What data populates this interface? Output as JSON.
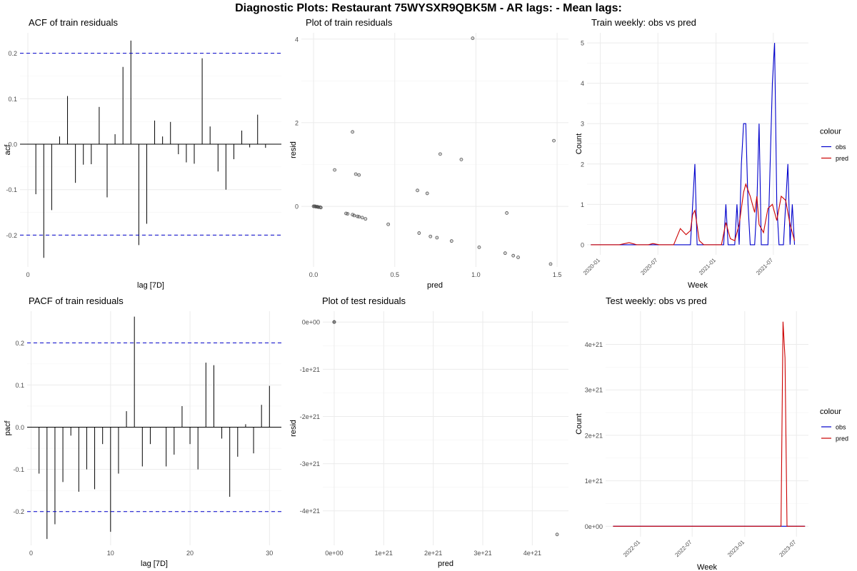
{
  "title": "Diagnostic Plots: Restaurant 75WYSXR9QBK5M - AR lags:  - Mean lags:",
  "colors": {
    "grid": "#ebebeb",
    "line": "#000000",
    "ci": "#0000cc",
    "obs": "#0000cc",
    "pred": "#cc0000",
    "point": "#555555"
  },
  "chart_data": [
    {
      "id": "acf",
      "type": "bar",
      "title": "ACF of train residuals",
      "xlabel": "lag [7D]",
      "ylabel": "acf",
      "xlim": [
        -1,
        32
      ],
      "ylim": [
        -0.27,
        0.245
      ],
      "xticks": [
        0
      ],
      "yticks": [
        -0.2,
        -0.1,
        0.0,
        0.1,
        0.2
      ],
      "yticklabels": [
        "-0.2",
        "-0.1",
        "0.0",
        "0.1",
        "0.2"
      ],
      "ci": [
        0.2,
        -0.2
      ],
      "lags": [
        1,
        2,
        3,
        4,
        5,
        6,
        7,
        8,
        9,
        10,
        11,
        12,
        13,
        14,
        15,
        16,
        17,
        18,
        19,
        20,
        21,
        22,
        23,
        24,
        25,
        26,
        27,
        28,
        29,
        30,
        31
      ],
      "values": [
        -0.11,
        -0.25,
        -0.145,
        0.017,
        0.106,
        -0.085,
        -0.045,
        -0.044,
        0.082,
        -0.117,
        0.022,
        0.17,
        0.228,
        -0.222,
        -0.175,
        0.052,
        0.017,
        0.049,
        -0.022,
        -0.04,
        -0.043,
        0.189,
        0.039,
        -0.06,
        -0.1,
        -0.033,
        0.03,
        -0.007,
        0.065,
        -0.008,
        0.0
      ]
    },
    {
      "id": "train-resid",
      "type": "scatter",
      "title": "Plot of train residuals",
      "xlabel": "pred",
      "ylabel": "resid",
      "xlim": [
        -0.075,
        1.57
      ],
      "ylim": [
        -1.45,
        4.15
      ],
      "xticks": [
        0.0,
        0.5,
        1.0,
        1.5
      ],
      "xticklabels": [
        "0.0",
        "0.5",
        "1.0",
        "1.5"
      ],
      "yticks": [
        0,
        2,
        4
      ],
      "yticklabels": [
        "0",
        "2",
        "4"
      ],
      "x": [
        0.0,
        0.005,
        0.01,
        0.015,
        0.02,
        0.025,
        0.03,
        0.04,
        0.045,
        0.2,
        0.21,
        0.24,
        0.25,
        0.27,
        0.28,
        0.3,
        0.32,
        0.13,
        0.24,
        0.26,
        0.28,
        0.46,
        0.64,
        0.65,
        0.7,
        0.72,
        0.76,
        0.78,
        0.85,
        0.91,
        0.98,
        1.02,
        1.18,
        1.19,
        1.23,
        1.26,
        1.46,
        1.48
      ],
      "y": [
        0.0,
        0.0,
        0.0,
        -0.01,
        -0.01,
        -0.01,
        -0.02,
        -0.02,
        -0.03,
        -0.17,
        -0.18,
        -0.2,
        -0.22,
        -0.24,
        -0.25,
        -0.27,
        -0.3,
        0.87,
        1.78,
        0.77,
        0.75,
        -0.43,
        0.38,
        -0.64,
        0.31,
        -0.72,
        -0.75,
        1.25,
        -0.83,
        1.12,
        4.02,
        -0.98,
        -1.12,
        -0.16,
        -1.18,
        -1.22,
        -1.38,
        1.57
      ]
    },
    {
      "id": "train-weekly",
      "type": "line",
      "title": "Train weekly: obs vs pred",
      "xlabel": "Week",
      "ylabel": "Count",
      "xlim": [
        "2019-11-20",
        "2021-10-20"
      ],
      "ylim": [
        -0.25,
        5.25
      ],
      "xticks": [
        "2020-01",
        "2020-07",
        "2021-01",
        "2021-07"
      ],
      "yticks": [
        0,
        1,
        2,
        3,
        4,
        5
      ],
      "yticklabels": [
        "0",
        "1",
        "2",
        "3",
        "4",
        "5"
      ],
      "legend_title": "colour",
      "legend_placement": "right",
      "series": [
        {
          "name": "obs",
          "points": [
            [
              "2019-12-02",
              0
            ],
            [
              "2020-10-12",
              0
            ],
            [
              "2020-10-19",
              1
            ],
            [
              "2020-10-26",
              2
            ],
            [
              "2020-11-02",
              0
            ],
            [
              "2021-01-25",
              0
            ],
            [
              "2021-02-01",
              1
            ],
            [
              "2021-02-08",
              0
            ],
            [
              "2021-03-01",
              0
            ],
            [
              "2021-03-08",
              1
            ],
            [
              "2021-03-15",
              0
            ],
            [
              "2021-03-22",
              2
            ],
            [
              "2021-03-29",
              3
            ],
            [
              "2021-04-05",
              3
            ],
            [
              "2021-04-12",
              1
            ],
            [
              "2021-04-19",
              0
            ],
            [
              "2021-05-03",
              0
            ],
            [
              "2021-05-10",
              1
            ],
            [
              "2021-05-17",
              3
            ],
            [
              "2021-05-24",
              0
            ],
            [
              "2021-06-14",
              0
            ],
            [
              "2021-06-21",
              2
            ],
            [
              "2021-06-28",
              4
            ],
            [
              "2021-07-05",
              5
            ],
            [
              "2021-07-12",
              1
            ],
            [
              "2021-07-19",
              0
            ],
            [
              "2021-08-02",
              0
            ],
            [
              "2021-08-09",
              1
            ],
            [
              "2021-08-16",
              2
            ],
            [
              "2021-08-23",
              0
            ],
            [
              "2021-08-30",
              1
            ],
            [
              "2021-09-06",
              0
            ]
          ]
        },
        {
          "name": "pred",
          "points": [
            [
              "2019-12-02",
              0
            ],
            [
              "2020-03-01",
              0
            ],
            [
              "2020-04-01",
              0.05
            ],
            [
              "2020-04-25",
              0
            ],
            [
              "2020-06-01",
              0
            ],
            [
              "2020-06-15",
              0.03
            ],
            [
              "2020-07-05",
              0
            ],
            [
              "2020-08-20",
              0
            ],
            [
              "2020-09-10",
              0.4
            ],
            [
              "2020-09-28",
              0.25
            ],
            [
              "2020-10-12",
              0.35
            ],
            [
              "2020-10-19",
              0.75
            ],
            [
              "2020-10-26",
              0.85
            ],
            [
              "2020-11-09",
              0.1
            ],
            [
              "2020-11-23",
              0
            ],
            [
              "2021-01-18",
              0
            ],
            [
              "2021-02-01",
              0.55
            ],
            [
              "2021-02-15",
              0.15
            ],
            [
              "2021-03-01",
              0.1
            ],
            [
              "2021-03-15",
              0.5
            ],
            [
              "2021-03-29",
              1.3
            ],
            [
              "2021-04-05",
              1.5
            ],
            [
              "2021-04-19",
              1.2
            ],
            [
              "2021-05-03",
              0.8
            ],
            [
              "2021-05-10",
              1.2
            ],
            [
              "2021-05-17",
              0.5
            ],
            [
              "2021-05-31",
              0.3
            ],
            [
              "2021-06-14",
              0.9
            ],
            [
              "2021-06-28",
              1.0
            ],
            [
              "2021-07-12",
              0.6
            ],
            [
              "2021-07-26",
              1.2
            ],
            [
              "2021-08-09",
              1.1
            ],
            [
              "2021-08-23",
              0.5
            ],
            [
              "2021-09-06",
              0.1
            ]
          ]
        }
      ]
    },
    {
      "id": "pacf",
      "type": "bar",
      "title": "PACF of train residuals",
      "xlabel": "lag [7D]",
      "ylabel": "pacf",
      "xlim": [
        -0.5,
        31.5
      ],
      "ylim": [
        -0.28,
        0.275
      ],
      "xticks": [
        0,
        10,
        20,
        30
      ],
      "xticklabels": [
        "0",
        "10",
        "20",
        "30"
      ],
      "yticks": [
        -0.2,
        -0.1,
        0.0,
        0.1,
        0.2
      ],
      "yticklabels": [
        "-0.2",
        "-0.1",
        "0.0",
        "0.1",
        "0.2"
      ],
      "ci": [
        0.2,
        -0.2
      ],
      "lags": [
        1,
        2,
        3,
        4,
        5,
        6,
        7,
        8,
        9,
        10,
        11,
        12,
        13,
        14,
        15,
        16,
        17,
        18,
        19,
        20,
        21,
        22,
        23,
        24,
        25,
        26,
        27,
        28,
        29,
        30
      ],
      "values": [
        -0.11,
        -0.265,
        -0.23,
        -0.13,
        -0.02,
        -0.153,
        -0.1,
        -0.147,
        -0.04,
        -0.248,
        -0.11,
        0.038,
        0.262,
        -0.093,
        -0.04,
        0.0,
        -0.093,
        -0.065,
        0.05,
        -0.04,
        -0.1,
        0.153,
        0.147,
        -0.027,
        -0.165,
        -0.07,
        0.007,
        -0.062,
        0.053,
        0.098
      ]
    },
    {
      "id": "test-resid",
      "type": "scatter",
      "title": "Plot of test residuals",
      "xlabel": "pred",
      "ylabel": "resid",
      "xlim": [
        -2.3e+20,
        4.73e+21
      ],
      "ylim": [
        -4.73e+21,
        2.3e+20
      ],
      "xticks": [
        0,
        1e+21,
        2e+21,
        3e+21,
        4e+21
      ],
      "xticklabels": [
        "0e+00",
        "1e+21",
        "2e+21",
        "3e+21",
        "4e+21"
      ],
      "yticks": [
        0,
        -1e+21,
        -2e+21,
        -3e+21,
        -4e+21
      ],
      "yticklabels": [
        "0e+00",
        "-1e+21",
        "-2e+21",
        "-3e+21",
        "-4e+21"
      ],
      "x": [
        0,
        0,
        0,
        4.5e+21
      ],
      "y": [
        0,
        0,
        0,
        -4.5e+21
      ]
    },
    {
      "id": "test-weekly",
      "type": "line",
      "title": "Test weekly: obs vs pred",
      "xlabel": "Week",
      "ylabel": "Count",
      "xlim": [
        "2021-09-01",
        "2023-08-12"
      ],
      "ylim": [
        -2.3e+20,
        4.73e+21
      ],
      "xticks": [
        "2022-01",
        "2022-07",
        "2023-01",
        "2023-07"
      ],
      "yticks": [
        0,
        1e+21,
        2e+21,
        3e+21,
        4e+21
      ],
      "yticklabels": [
        "0e+00",
        "1e+21",
        "2e+21",
        "3e+21",
        "4e+21"
      ],
      "legend_title": "colour",
      "legend_placement": "right",
      "series": [
        {
          "name": "obs",
          "points": [
            [
              "2021-09-27",
              0
            ],
            [
              "2023-07-31",
              0
            ]
          ]
        },
        {
          "name": "pred",
          "points": [
            [
              "2021-09-27",
              0
            ],
            [
              "2023-05-08",
              0
            ],
            [
              "2023-05-15",
              4.5e+21
            ],
            [
              "2023-05-22",
              3.7e+21
            ],
            [
              "2023-05-29",
              0
            ],
            [
              "2023-07-31",
              0
            ]
          ]
        }
      ]
    }
  ]
}
